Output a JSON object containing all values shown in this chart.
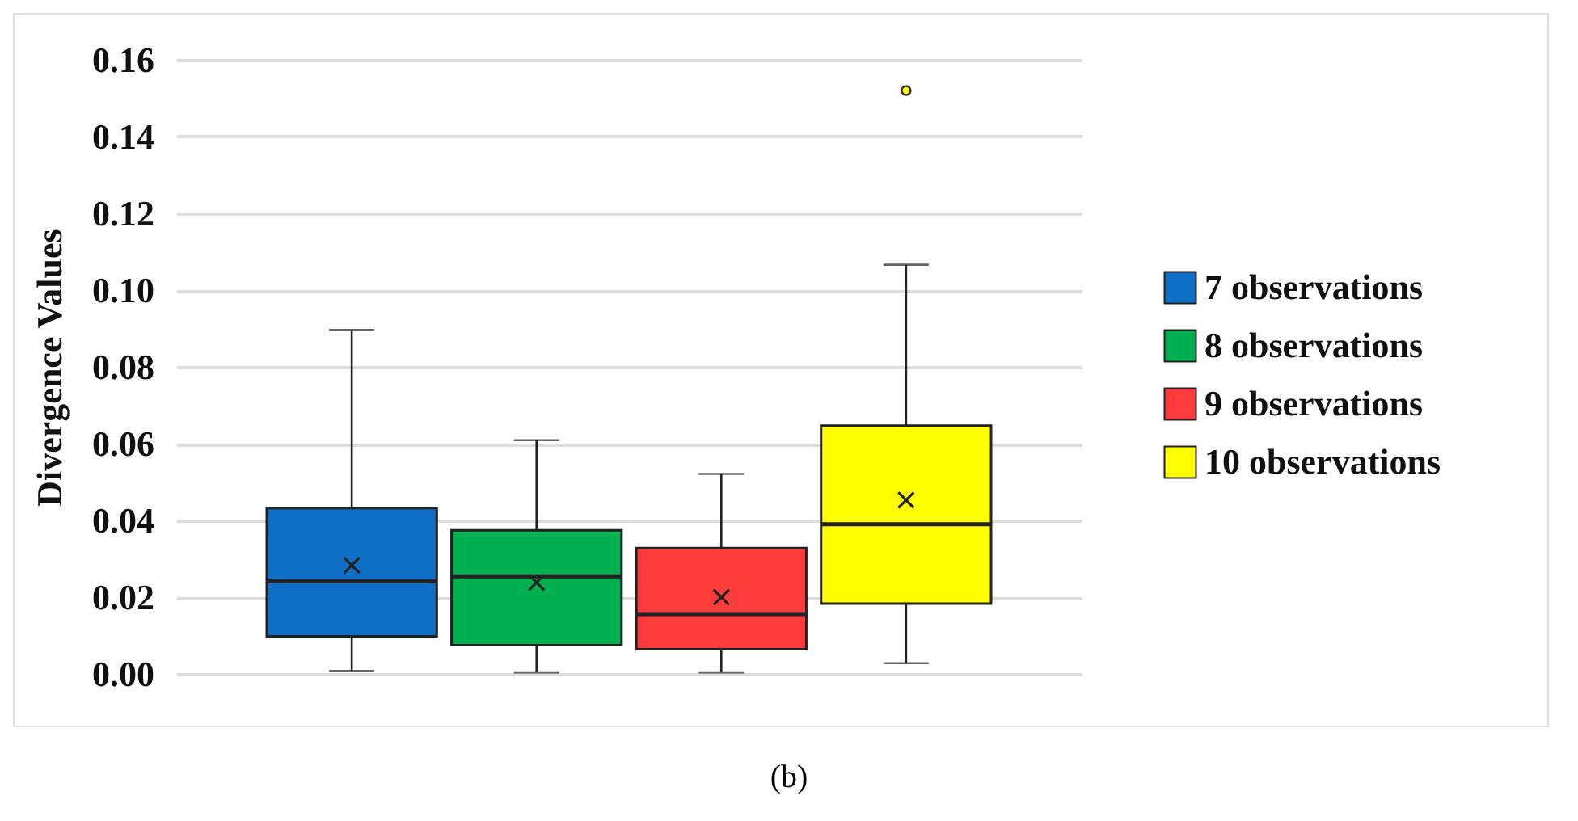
{
  "chart_data": {
    "type": "box",
    "ylabel": "Divergence Values",
    "annotations": [
      "(b)"
    ],
    "categories": [
      null
    ],
    "series": [
      {
        "name": "7 observations",
        "color": "#0f6fc6",
        "boxes": [
          {
            "low": 0.0008,
            "q1": 0.0098,
            "median": 0.0241,
            "q3": 0.0432,
            "high": 0.0896,
            "mean": 0.0283
          }
        ]
      },
      {
        "name": "8 observations",
        "color": "#00b050",
        "boxes": [
          {
            "low": 0.0004,
            "q1": 0.0075,
            "median": 0.0254,
            "q3": 0.0374,
            "high": 0.0609,
            "mean": 0.0238
          }
        ]
      },
      {
        "name": "9 observations",
        "color": "#ff3b3b",
        "boxes": [
          {
            "low": 0.0004,
            "q1": 0.0064,
            "median": 0.0156,
            "q3": 0.0328,
            "high": 0.0521,
            "mean": 0.02
          }
        ]
      },
      {
        "name": "10 observations",
        "color": "#ffff00",
        "boxes": [
          {
            "low": 0.0028,
            "q1": 0.0183,
            "median": 0.039,
            "q3": 0.0647,
            "high": 0.1066,
            "mean": 0.0453,
            "outliers": [
              0.152
            ]
          }
        ]
      }
    ],
    "ylim": [
      0,
      0.16
    ],
    "yticks": [
      {
        "value": 0,
        "label": "0.00"
      },
      0.02,
      0.04,
      0.06,
      0.08,
      {
        "value": 0.1,
        "label": "0.10"
      },
      0.12,
      0.14,
      0.16
    ],
    "grid": "y",
    "legend": "right",
    "marker": "cross"
  }
}
